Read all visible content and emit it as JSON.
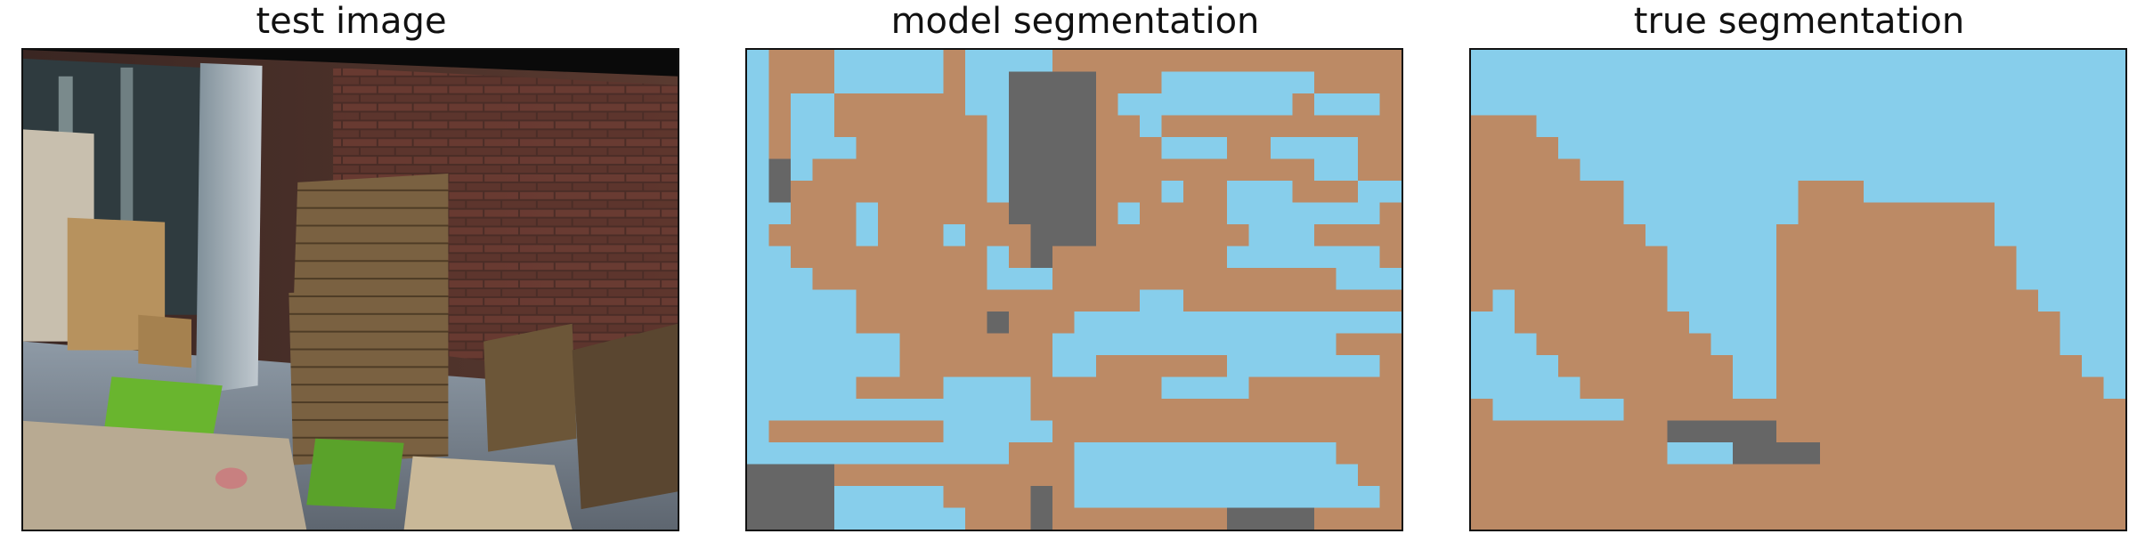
{
  "panels": [
    {
      "title": "test image"
    },
    {
      "title": "model segmentation"
    },
    {
      "title": "true segmentation"
    }
  ],
  "segmentation": {
    "grid": {
      "cols": 30,
      "rows": 22
    },
    "palette": {
      "a": "#87ceeb",
      "b": "#bc8a65",
      "g": "#666666",
      "l": "#7cfc00"
    },
    "model": [
      "abbbaaaaabaaaabbbbbbbbbbbbbbbb",
      "abbbaaaaabaaggggbbbaaaaaaabbbb",
      "abaabbbbbbaaggggbaaaaaaaabaaab",
      "abaabbbbbbbaggggbbabbbbbbbbbbb",
      "abaaabbbbbbaggggbbbaaabbaaaabb",
      "agabbbbbbbbaggggbbbbbbbbbbaabb",
      "agbbbbbbbbbaggggbbbabbaaabbbaa",
      "aabbbabbbbbbggggbabbbbaaaaaaab",
      "abbbbabbbabbbgggbbbbbbbaaabbbb",
      "aabbbbbbbbbabgbbbbbbbbaaaaaaab",
      "aaabbbbbbbbaaabbbbbbbbbbbbbaaa",
      "aaaaabbbbbbbbbbbbbaabbbbbbbbbb",
      "aaaaabbbbbbgbbbaaaaaaaaaaaaaaa",
      "aaaaaaabbbbbbbaaaaaaaaaaaaabbb",
      "aaaaaaabbbbbbbaabbbbbbaaaaaaab",
      "aaaaabbbbaaaabbbbbbaaaabbbbbbb",
      "aaaaaaaaaaaaabbbbbbbbbbbbbbbbb",
      "abbbbbbbbaaaaabbbbbbbbbbbbbbbb",
      "aaaaaaaaaaaabbbaaaaaaaaaaaabbb",
      "ggggbbbbbbbbbbbaaaaaaaaaaaaabb",
      "ggggaaaaabbbbgbaaaaaaaaaaaaaab",
      "ggggaaaaaabbbgbbbbbbbbggggbbbb"
    ],
    "true": [
      "aaaaaaaaaaaaaaaaaaaaaaaaaaaaaa",
      "aaaaaaaaaaaaaaaaaaaaaaaaaaaaaa",
      "aaaaaaaaaaaaaaaaaaaaaaaaaaaaaa",
      "bbbaaaaaaaaaaaaaaaaaaaaaaaaaaa",
      "bbbbaaaaaaaaaaaaaaaaaaaaaaaaaa",
      "bbbbbaaaaaaaaaaaaaaaaaaaaaaaaa",
      "bbbbbbbaaaaaaaabbbaaaaaaaaaaaa",
      "bbbbbbbaaaaaaaabbbbbbbbbaaaaaa",
      "bbbbbbbbaaaaaabbbbbbbbbbaaaaaa",
      "bbbbbbbbbaaaaabbbbbbbbbbbaaaaa",
      "bbbbbbbbbaaaaabbbbbbbbbbbaaaaa",
      "babbbbbbbaaaaabbbbbbbbbbbbaaaa",
      "aabbbbbbbbaaaabbbbbbbbbbbbbaaa",
      "aaabbbbbbbbaaabbbbbbbbbbbbbaaa",
      "aaaabbbbbbbbaabbbbbbbbbbbbbbaa",
      "aaaaabbbbbbbaabbbbbbbbbbbbbbba",
      "baaaaaabbbbbbbbbbbbbbbbbbbbbbb",
      "bbbbbbbbbgggggbbbbbbbbbbbbbbbb",
      "bbbbbbbbbaaaggggbbbbbbbbbbbbbb",
      "bbbbbbbbbbbbbbbbbbbbbbbbbbbbbb",
      "bbbbbbbbbbbbbbbbbbbbbbbbbbbbbb",
      "bbbbbbbbbbbbbbbbbbbbbbbbbbbbbb"
    ]
  }
}
